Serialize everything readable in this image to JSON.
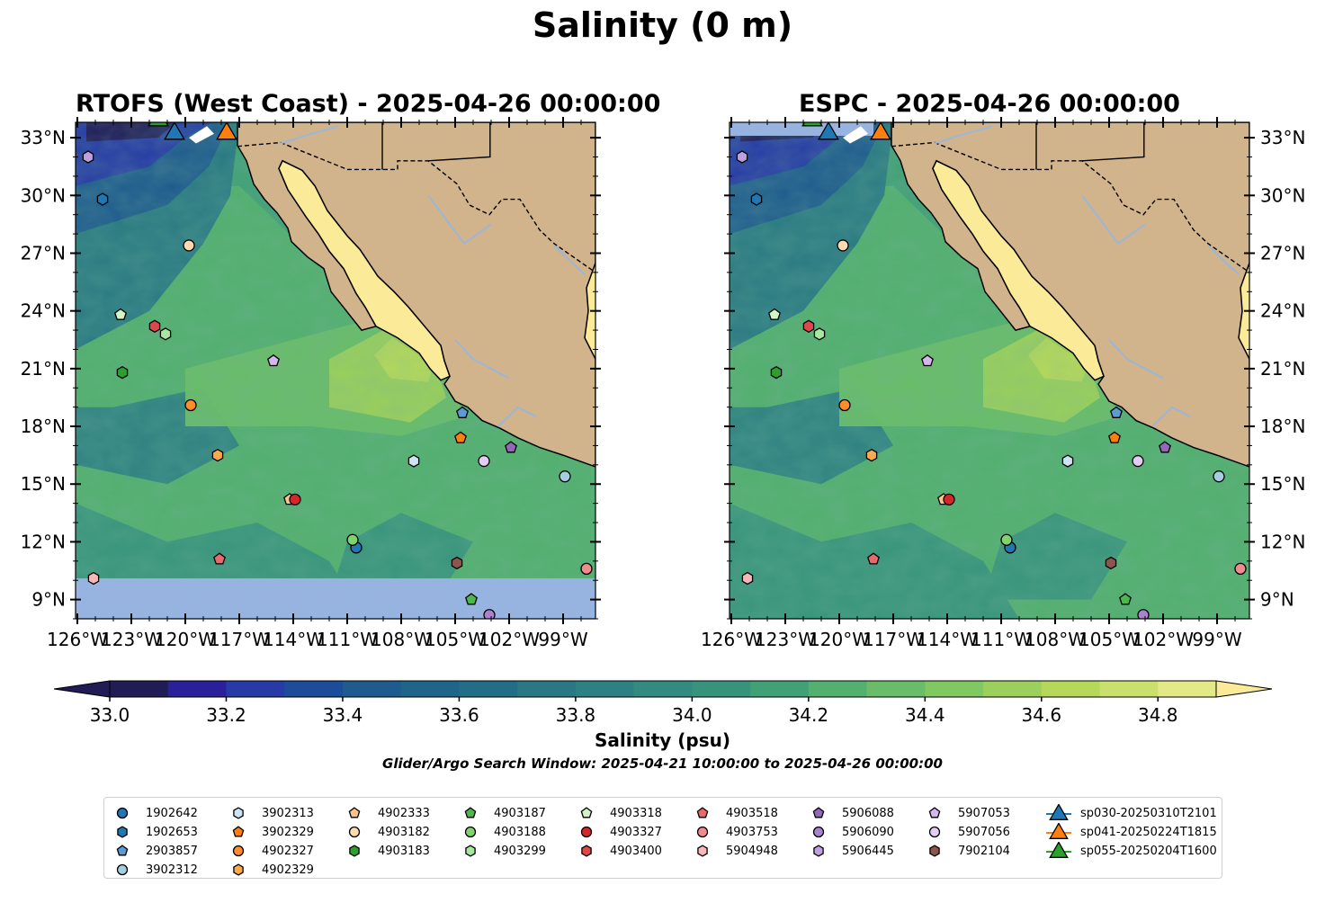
{
  "title": "Salinity (0 m)",
  "panels": [
    {
      "title": "RTOFS (West Coast) - 2025-04-26 00:00:00"
    },
    {
      "title": "ESPC - 2025-04-26 00:00:00"
    }
  ],
  "lat_ticks": [
    "33°N",
    "30°N",
    "27°N",
    "24°N",
    "21°N",
    "18°N",
    "15°N",
    "12°N",
    "9°N"
  ],
  "lon_ticks": [
    "126°W",
    "123°W",
    "120°W",
    "117°W",
    "114°W",
    "111°W",
    "108°W",
    "105°W",
    "102°W",
    "99°W"
  ],
  "colorbar": {
    "label": "Salinity (psu)",
    "ticks": [
      "33.0",
      "33.2",
      "33.4",
      "33.6",
      "33.8",
      "34.0",
      "34.2",
      "34.4",
      "34.6",
      "34.8"
    ],
    "range": [
      33.0,
      34.9
    ],
    "extend": "both",
    "colormap": "haline"
  },
  "search_window": "Glider/Argo Search Window: 2025-04-21 10:00:00 to 2025-04-26 00:00:00",
  "colors": {
    "land": "#d2b48c",
    "missing_ocean": "#97b3e0",
    "river": "#9ab6d8"
  },
  "legend": [
    {
      "label": "1902642",
      "marker": "circle",
      "color": "#1f77b4"
    },
    {
      "label": "1902653",
      "marker": "hexagon",
      "color": "#1f77b4"
    },
    {
      "label": "2903857",
      "marker": "pentagon",
      "color": "#5b9bd5"
    },
    {
      "label": "3902312",
      "marker": "circle",
      "color": "#a6cee3"
    },
    {
      "label": "3902313",
      "marker": "hexagon",
      "color": "#cde4f7"
    },
    {
      "label": "3902329",
      "marker": "pentagon",
      "color": "#ff7f0e"
    },
    {
      "label": "4902327",
      "marker": "circle",
      "color": "#ff8c2e"
    },
    {
      "label": "4902329",
      "marker": "hexagon",
      "color": "#ffa94d"
    },
    {
      "label": "4902333",
      "marker": "pentagon",
      "color": "#ffc48a"
    },
    {
      "label": "4903182",
      "marker": "circle",
      "color": "#ffd9b0"
    },
    {
      "label": "4903183",
      "marker": "hexagon",
      "color": "#2ca02c"
    },
    {
      "label": "4903187",
      "marker": "pentagon",
      "color": "#4cb84c"
    },
    {
      "label": "4903188",
      "marker": "circle",
      "color": "#7fd46e"
    },
    {
      "label": "4903299",
      "marker": "hexagon",
      "color": "#a9e7a0"
    },
    {
      "label": "4903318",
      "marker": "pentagon",
      "color": "#d2f5c8"
    },
    {
      "label": "4903327",
      "marker": "circle",
      "color": "#d62728"
    },
    {
      "label": "4903400",
      "marker": "hexagon",
      "color": "#e0474a"
    },
    {
      "label": "4903518",
      "marker": "pentagon",
      "color": "#e86a6a"
    },
    {
      "label": "4903753",
      "marker": "circle",
      "color": "#f08c8c"
    },
    {
      "label": "5904948",
      "marker": "hexagon",
      "color": "#f8b8b8"
    },
    {
      "label": "5906088",
      "marker": "pentagon",
      "color": "#9467bd"
    },
    {
      "label": "5906090",
      "marker": "circle",
      "color": "#a983cf"
    },
    {
      "label": "5906445",
      "marker": "hexagon",
      "color": "#bfa0df"
    },
    {
      "label": "5907053",
      "marker": "pentagon",
      "color": "#d4b6f0"
    },
    {
      "label": "5907056",
      "marker": "circle",
      "color": "#e3cdf7"
    },
    {
      "label": "7902104",
      "marker": "hexagon",
      "color": "#8c564b"
    },
    {
      "label": "sp030-20250310T2101",
      "marker": "triangle",
      "color": "#1f77b4"
    },
    {
      "label": "sp041-20250224T1815",
      "marker": "triangle",
      "color": "#ff7f0e"
    },
    {
      "label": "sp055-20250204T1600",
      "marker": "triangle",
      "color": "#2ca02c"
    }
  ],
  "floats": [
    {
      "id": "1902642",
      "lon": -110.5,
      "lat": 11.7
    },
    {
      "id": "1902653",
      "lon": -124.6,
      "lat": 29.8
    },
    {
      "id": "2903857",
      "lon": -104.6,
      "lat": 18.7
    },
    {
      "id": "3902312",
      "lon": -98.9,
      "lat": 15.4
    },
    {
      "id": "3902313",
      "lon": -107.3,
      "lat": 16.2
    },
    {
      "id": "3902329",
      "lon": -104.7,
      "lat": 17.4
    },
    {
      "id": "4902327",
      "lon": -119.7,
      "lat": 19.1
    },
    {
      "id": "4902329",
      "lon": -118.2,
      "lat": 16.5
    },
    {
      "id": "4902333",
      "lon": -114.2,
      "lat": 14.2
    },
    {
      "id": "4903182",
      "lon": -119.8,
      "lat": 27.4
    },
    {
      "id": "4903183",
      "lon": -123.5,
      "lat": 20.8
    },
    {
      "id": "4903187",
      "lon": -104.1,
      "lat": 9.0
    },
    {
      "id": "4903188",
      "lon": -110.7,
      "lat": 12.1
    },
    {
      "id": "4903299",
      "lon": -121.1,
      "lat": 22.8
    },
    {
      "id": "4903318",
      "lon": -123.6,
      "lat": 23.8
    },
    {
      "id": "4903327",
      "lon": -113.9,
      "lat": 14.2
    },
    {
      "id": "4903400",
      "lon": -121.7,
      "lat": 23.2
    },
    {
      "id": "4903518",
      "lon": -118.1,
      "lat": 11.1
    },
    {
      "id": "4903753",
      "lon": -97.7,
      "lat": 10.6
    },
    {
      "id": "5904948",
      "lon": -125.1,
      "lat": 10.1
    },
    {
      "id": "5906088",
      "lon": -101.9,
      "lat": 16.9
    },
    {
      "id": "5906090",
      "lon": -103.1,
      "lat": 8.2
    },
    {
      "id": "5906445",
      "lon": -125.4,
      "lat": 32.0
    },
    {
      "id": "5907053",
      "lon": -115.1,
      "lat": 21.4
    },
    {
      "id": "5907056",
      "lon": -103.4,
      "lat": 16.2
    },
    {
      "id": "7902104",
      "lon": -104.9,
      "lat": 10.9
    }
  ],
  "gliders": [
    {
      "id": "sp030-20250310T2101",
      "lon": -120.6,
      "lat": 33.3
    },
    {
      "id": "sp041-20250224T1815",
      "lon": -117.7,
      "lat": 33.3
    },
    {
      "id": "sp055-20250204T1600",
      "lon": -121.5,
      "lat": 34.0
    }
  ]
}
